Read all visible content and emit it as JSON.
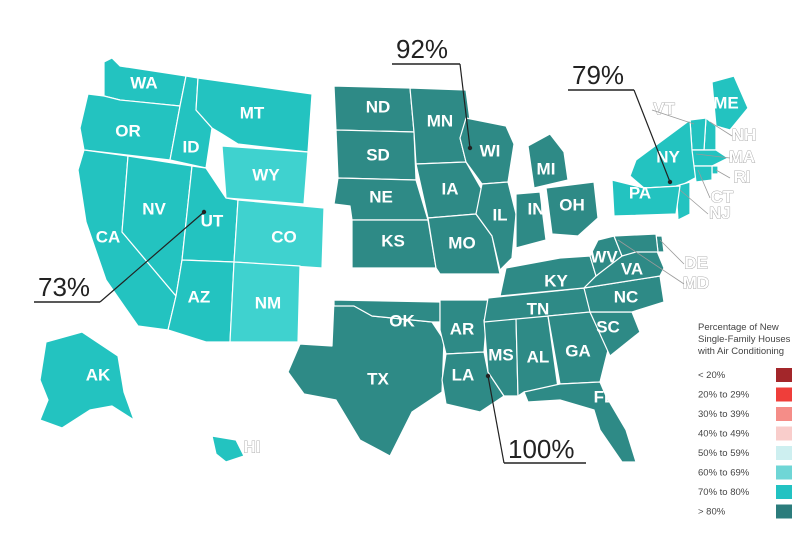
{
  "colors": {
    "dark_teal": "#2e8a86",
    "mid_teal": "#23c3c0",
    "light_teal": "#3fd2cf",
    "border": "#ffffff"
  },
  "legend": {
    "title_lines": [
      "Percentage of New",
      "Single-Family Houses",
      "with Air Conditioning"
    ],
    "items": [
      {
        "label": "< 20%",
        "color": "#a3262a"
      },
      {
        "label": "20% to 29%",
        "color": "#ef3e3a"
      },
      {
        "label": "30% to 39%",
        "color": "#f58d88"
      },
      {
        "label": "40% to 49%",
        "color": "#f9cdcb"
      },
      {
        "label": "50% to 59%",
        "color": "#cdeff0"
      },
      {
        "label": "60% to 69%",
        "color": "#6fd6d6"
      },
      {
        "label": "70% to 80%",
        "color": "#22c2c2"
      },
      {
        "label": "> 80%",
        "color": "#2b7c7c"
      }
    ]
  },
  "callouts": [
    {
      "label": "92%",
      "region": "Midwest"
    },
    {
      "label": "79%",
      "region": "Northeast"
    },
    {
      "label": "73%",
      "region": "West"
    },
    {
      "label": "100%",
      "region": "South"
    }
  ],
  "states": [
    {
      "abbr": "WA",
      "color": "#23c3c0"
    },
    {
      "abbr": "OR",
      "color": "#23c3c0"
    },
    {
      "abbr": "ID",
      "color": "#23c3c0"
    },
    {
      "abbr": "MT",
      "color": "#23c3c0"
    },
    {
      "abbr": "WY",
      "color": "#3fd2cf"
    },
    {
      "abbr": "CA",
      "color": "#23c3c0"
    },
    {
      "abbr": "NV",
      "color": "#23c3c0"
    },
    {
      "abbr": "UT",
      "color": "#23c3c0"
    },
    {
      "abbr": "CO",
      "color": "#3fd2cf"
    },
    {
      "abbr": "AZ",
      "color": "#23c3c0"
    },
    {
      "abbr": "NM",
      "color": "#3fd2cf"
    },
    {
      "abbr": "AK",
      "color": "#23c3c0"
    },
    {
      "abbr": "HI",
      "color": "#23c3c0"
    },
    {
      "abbr": "ND",
      "color": "#2e8a86"
    },
    {
      "abbr": "SD",
      "color": "#2e8a86"
    },
    {
      "abbr": "NE",
      "color": "#2e8a86"
    },
    {
      "abbr": "KS",
      "color": "#2e8a86"
    },
    {
      "abbr": "MN",
      "color": "#2e8a86"
    },
    {
      "abbr": "IA",
      "color": "#2e8a86"
    },
    {
      "abbr": "MO",
      "color": "#2e8a86"
    },
    {
      "abbr": "WI",
      "color": "#2e8a86"
    },
    {
      "abbr": "IL",
      "color": "#2e8a86"
    },
    {
      "abbr": "MI",
      "color": "#2e8a86"
    },
    {
      "abbr": "IN",
      "color": "#2e8a86"
    },
    {
      "abbr": "OH",
      "color": "#2e8a86"
    },
    {
      "abbr": "TX",
      "color": "#2e8a86"
    },
    {
      "abbr": "OK",
      "color": "#2e8a86"
    },
    {
      "abbr": "AR",
      "color": "#2e8a86"
    },
    {
      "abbr": "LA",
      "color": "#2e8a86"
    },
    {
      "abbr": "MS",
      "color": "#2e8a86"
    },
    {
      "abbr": "AL",
      "color": "#2e8a86"
    },
    {
      "abbr": "TN",
      "color": "#2e8a86"
    },
    {
      "abbr": "KY",
      "color": "#2e8a86"
    },
    {
      "abbr": "GA",
      "color": "#2e8a86"
    },
    {
      "abbr": "FL",
      "color": "#2e8a86"
    },
    {
      "abbr": "SC",
      "color": "#2e8a86"
    },
    {
      "abbr": "NC",
      "color": "#2e8a86"
    },
    {
      "abbr": "VA",
      "color": "#2e8a86"
    },
    {
      "abbr": "WV",
      "color": "#2e8a86"
    },
    {
      "abbr": "DE",
      "color": "#2e8a86"
    },
    {
      "abbr": "MD",
      "color": "#2e8a86"
    },
    {
      "abbr": "ME",
      "color": "#23c3c0"
    },
    {
      "abbr": "NH",
      "color": "#23c3c0"
    },
    {
      "abbr": "VT",
      "color": "#23c3c0"
    },
    {
      "abbr": "NY",
      "color": "#23c3c0"
    },
    {
      "abbr": "MA",
      "color": "#23c3c0"
    },
    {
      "abbr": "RI",
      "color": "#23c3c0"
    },
    {
      "abbr": "CT",
      "color": "#23c3c0"
    },
    {
      "abbr": "NJ",
      "color": "#23c3c0"
    },
    {
      "abbr": "PA",
      "color": "#23c3c0"
    }
  ]
}
